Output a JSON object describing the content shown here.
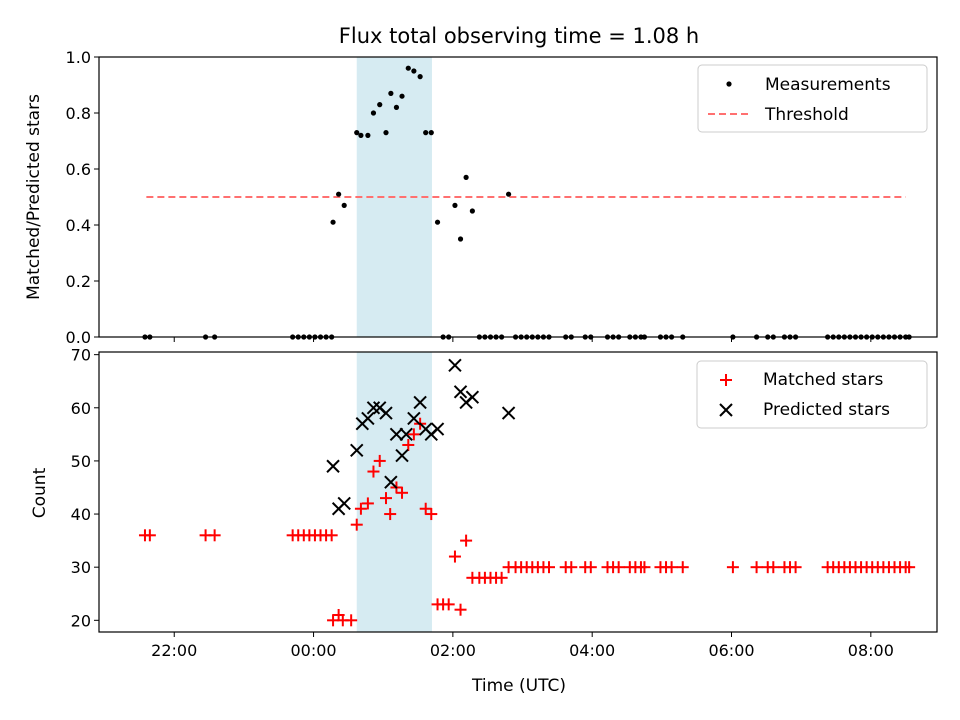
{
  "chart_data": {
    "title": "Flux total observing time = 1.08 h",
    "xlabel": "Time (UTC)",
    "x_unit": "hours relative to 00:00 UTC",
    "xlim": [
      -3.08,
      8.95
    ],
    "xticks": [
      {
        "value": -2,
        "label": "22:00"
      },
      {
        "value": 0,
        "label": "00:00"
      },
      {
        "value": 2,
        "label": "02:00"
      },
      {
        "value": 4,
        "label": "04:00"
      },
      {
        "value": 6,
        "label": "06:00"
      },
      {
        "value": 8,
        "label": "08:00"
      }
    ],
    "observing_window": {
      "start": 0.62,
      "end": 1.7,
      "color": "#add8e6"
    },
    "top": {
      "type": "scatter",
      "ylabel": "Matched/Predicted stars",
      "ylim": [
        0,
        1.0
      ],
      "yticks": [
        "0.0",
        "0.2",
        "0.4",
        "0.6",
        "0.8",
        "1.0"
      ],
      "legend": {
        "position": "top-right",
        "measurements_label": "Measurements",
        "threshold_label": "Threshold"
      },
      "threshold": {
        "value": 0.5,
        "x_range": [
          -2.4,
          8.5
        ],
        "color": "#ff7070"
      },
      "measurements": [
        [
          -2.42,
          0
        ],
        [
          -2.35,
          0
        ],
        [
          -1.55,
          0
        ],
        [
          -1.42,
          0
        ],
        [
          -0.3,
          0
        ],
        [
          -0.22,
          0
        ],
        [
          -0.14,
          0
        ],
        [
          -0.06,
          0
        ],
        [
          0.02,
          0
        ],
        [
          0.1,
          0
        ],
        [
          0.18,
          0
        ],
        [
          0.26,
          0
        ],
        [
          0.28,
          0.41
        ],
        [
          0.36,
          0.51
        ],
        [
          0.44,
          0.47
        ],
        [
          0.62,
          0.73
        ],
        [
          0.68,
          0.72
        ],
        [
          0.78,
          0.72
        ],
        [
          0.86,
          0.8
        ],
        [
          0.95,
          0.83
        ],
        [
          1.04,
          0.73
        ],
        [
          1.11,
          0.87
        ],
        [
          1.19,
          0.82
        ],
        [
          1.27,
          0.86
        ],
        [
          1.36,
          0.96
        ],
        [
          1.44,
          0.95
        ],
        [
          1.53,
          0.93
        ],
        [
          1.61,
          0.73
        ],
        [
          1.69,
          0.73
        ],
        [
          1.78,
          0.41
        ],
        [
          1.86,
          0
        ],
        [
          1.94,
          0
        ],
        [
          2.03,
          0.47
        ],
        [
          2.11,
          0.35
        ],
        [
          2.19,
          0.57
        ],
        [
          2.28,
          0.45
        ],
        [
          2.38,
          0
        ],
        [
          2.46,
          0
        ],
        [
          2.54,
          0
        ],
        [
          2.62,
          0
        ],
        [
          2.7,
          0
        ],
        [
          2.8,
          0.51
        ],
        [
          2.9,
          0
        ],
        [
          2.98,
          0
        ],
        [
          3.06,
          0
        ],
        [
          3.14,
          0
        ],
        [
          3.22,
          0
        ],
        [
          3.3,
          0
        ],
        [
          3.38,
          0
        ],
        [
          3.62,
          0
        ],
        [
          3.7,
          0
        ],
        [
          3.9,
          0
        ],
        [
          3.98,
          0
        ],
        [
          4.22,
          0
        ],
        [
          4.3,
          0
        ],
        [
          4.38,
          0
        ],
        [
          4.54,
          0
        ],
        [
          4.62,
          0
        ],
        [
          4.7,
          0
        ],
        [
          4.75,
          0
        ],
        [
          4.98,
          0
        ],
        [
          5.06,
          0
        ],
        [
          5.14,
          0
        ],
        [
          5.3,
          0
        ],
        [
          6.02,
          0
        ],
        [
          6.36,
          0
        ],
        [
          6.52,
          0
        ],
        [
          6.6,
          0
        ],
        [
          6.76,
          0
        ],
        [
          6.84,
          0
        ],
        [
          6.92,
          0
        ],
        [
          7.38,
          0
        ],
        [
          7.46,
          0
        ],
        [
          7.54,
          0
        ],
        [
          7.62,
          0
        ],
        [
          7.7,
          0
        ],
        [
          7.78,
          0
        ],
        [
          7.86,
          0
        ],
        [
          7.94,
          0
        ],
        [
          8.02,
          0
        ],
        [
          8.1,
          0
        ],
        [
          8.18,
          0
        ],
        [
          8.26,
          0
        ],
        [
          8.34,
          0
        ],
        [
          8.42,
          0
        ],
        [
          8.5,
          0
        ],
        [
          8.55,
          0
        ]
      ]
    },
    "bottom": {
      "type": "scatter",
      "ylabel": "Count",
      "ylim": [
        17.8,
        70.5
      ],
      "yticks": [
        20,
        30,
        40,
        50,
        60,
        70
      ],
      "legend": {
        "position": "top-right",
        "matched_label": "Matched stars",
        "predicted_label": "Predicted stars"
      },
      "series": [
        {
          "name": "Matched stars",
          "color": "#ff0000",
          "marker": "+",
          "points": [
            [
              -2.42,
              36
            ],
            [
              -2.35,
              36
            ],
            [
              -1.55,
              36
            ],
            [
              -1.42,
              36
            ],
            [
              -0.3,
              36
            ],
            [
              -0.22,
              36
            ],
            [
              -0.14,
              36
            ],
            [
              -0.06,
              36
            ],
            [
              0.02,
              36
            ],
            [
              0.1,
              36
            ],
            [
              0.18,
              36
            ],
            [
              0.26,
              36
            ],
            [
              0.28,
              20
            ],
            [
              0.36,
              21
            ],
            [
              0.42,
              20
            ],
            [
              0.54,
              20
            ],
            [
              0.62,
              38
            ],
            [
              0.68,
              41
            ],
            [
              0.78,
              42
            ],
            [
              0.86,
              48
            ],
            [
              0.95,
              50
            ],
            [
              1.04,
              43
            ],
            [
              1.1,
              40
            ],
            [
              1.19,
              45
            ],
            [
              1.27,
              44
            ],
            [
              1.36,
              53
            ],
            [
              1.44,
              55
            ],
            [
              1.53,
              57
            ],
            [
              1.61,
              41
            ],
            [
              1.69,
              40
            ],
            [
              1.78,
              23
            ],
            [
              1.86,
              23
            ],
            [
              1.94,
              23
            ],
            [
              2.03,
              32
            ],
            [
              2.11,
              22
            ],
            [
              2.19,
              35
            ],
            [
              2.28,
              28
            ],
            [
              2.38,
              28
            ],
            [
              2.46,
              28
            ],
            [
              2.54,
              28
            ],
            [
              2.62,
              28
            ],
            [
              2.7,
              28
            ],
            [
              2.8,
              30
            ],
            [
              2.9,
              30
            ],
            [
              2.98,
              30
            ],
            [
              3.06,
              30
            ],
            [
              3.14,
              30
            ],
            [
              3.22,
              30
            ],
            [
              3.3,
              30
            ],
            [
              3.38,
              30
            ],
            [
              3.62,
              30
            ],
            [
              3.7,
              30
            ],
            [
              3.9,
              30
            ],
            [
              3.98,
              30
            ],
            [
              4.22,
              30
            ],
            [
              4.3,
              30
            ],
            [
              4.38,
              30
            ],
            [
              4.54,
              30
            ],
            [
              4.62,
              30
            ],
            [
              4.7,
              30
            ],
            [
              4.75,
              30
            ],
            [
              4.98,
              30
            ],
            [
              5.06,
              30
            ],
            [
              5.14,
              30
            ],
            [
              5.3,
              30
            ],
            [
              6.02,
              30
            ],
            [
              6.36,
              30
            ],
            [
              6.52,
              30
            ],
            [
              6.6,
              30
            ],
            [
              6.76,
              30
            ],
            [
              6.84,
              30
            ],
            [
              6.92,
              30
            ],
            [
              7.38,
              30
            ],
            [
              7.46,
              30
            ],
            [
              7.54,
              30
            ],
            [
              7.62,
              30
            ],
            [
              7.7,
              30
            ],
            [
              7.78,
              30
            ],
            [
              7.86,
              30
            ],
            [
              7.94,
              30
            ],
            [
              8.02,
              30
            ],
            [
              8.1,
              30
            ],
            [
              8.18,
              30
            ],
            [
              8.26,
              30
            ],
            [
              8.34,
              30
            ],
            [
              8.42,
              30
            ],
            [
              8.5,
              30
            ],
            [
              8.55,
              30
            ]
          ]
        },
        {
          "name": "Predicted stars",
          "color": "#000000",
          "marker": "x",
          "points": [
            [
              0.28,
              49
            ],
            [
              0.36,
              41
            ],
            [
              0.44,
              42
            ],
            [
              0.62,
              52
            ],
            [
              0.7,
              57
            ],
            [
              0.78,
              58
            ],
            [
              0.86,
              60
            ],
            [
              0.95,
              60
            ],
            [
              1.04,
              59
            ],
            [
              1.11,
              46
            ],
            [
              1.19,
              55
            ],
            [
              1.27,
              51
            ],
            [
              1.33,
              55
            ],
            [
              1.44,
              58
            ],
            [
              1.53,
              61
            ],
            [
              1.61,
              56
            ],
            [
              1.69,
              55
            ],
            [
              1.78,
              56
            ],
            [
              2.03,
              68
            ],
            [
              2.11,
              63
            ],
            [
              2.19,
              61
            ],
            [
              2.28,
              62
            ],
            [
              2.8,
              59
            ]
          ]
        }
      ]
    }
  }
}
